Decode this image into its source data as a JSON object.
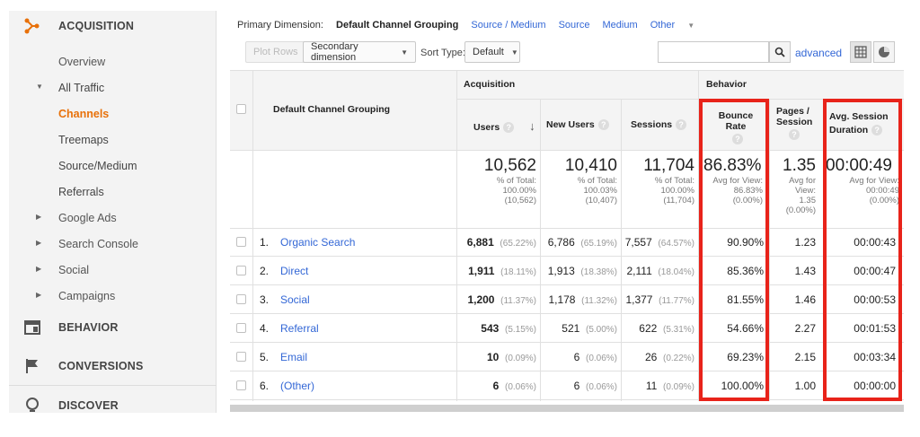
{
  "sidebar": {
    "acquisition_label": "ACQUISITION",
    "items": [
      {
        "label": "Overview"
      },
      {
        "label": "All Traffic"
      },
      {
        "label": "Channels"
      },
      {
        "label": "Treemaps"
      },
      {
        "label": "Source/Medium"
      },
      {
        "label": "Referrals"
      },
      {
        "label": "Google Ads"
      },
      {
        "label": "Search Console"
      },
      {
        "label": "Social"
      },
      {
        "label": "Campaigns"
      }
    ],
    "behavior_label": "BEHAVIOR",
    "conversions_label": "CONVERSIONS",
    "discover_label": "DISCOVER",
    "accent_color": "#e8710a"
  },
  "dimensions": {
    "label": "Primary Dimension:",
    "current": "Default Channel Grouping",
    "options": [
      "Source / Medium",
      "Source",
      "Medium"
    ],
    "other": "Other"
  },
  "toolbar": {
    "plot_rows": "Plot Rows",
    "secondary_dimension": "Secondary dimension",
    "sort_type_label": "Sort Type:",
    "sort_type_value": "Default",
    "search_placeholder": "",
    "advanced": "advanced"
  },
  "table": {
    "group_acquisition": "Acquisition",
    "group_behavior": "Behavior",
    "col_dimension": "Default Channel Grouping",
    "col_users": "Users",
    "col_new_users": "New Users",
    "col_sessions": "Sessions",
    "col_bounce_rate": "Bounce Rate",
    "col_pages_session_1": "Pages /",
    "col_pages_session_2": "Session",
    "col_avg_duration_1": "Avg. Session",
    "col_avg_duration_2": "Duration",
    "totals": {
      "users": "10,562",
      "users_sub1": "% of Total:",
      "users_sub2": "100.00%",
      "users_sub3": "(10,562)",
      "new_users": "10,410",
      "new_users_sub1": "% of Total:",
      "new_users_sub2": "100.03%",
      "new_users_sub3": "(10,407)",
      "sessions": "11,704",
      "sessions_sub1": "% of Total:",
      "sessions_sub2": "100.00%",
      "sessions_sub3": "(11,704)",
      "bounce": "86.83%",
      "bounce_sub1": "Avg for View:",
      "bounce_sub2": "86.83%",
      "bounce_sub3": "(0.00%)",
      "pages": "1.35",
      "pages_sub1": "Avg for",
      "pages_sub2": "View:",
      "pages_sub3": "1.35",
      "pages_sub4": "(0.00%)",
      "duration": "00:00:49",
      "duration_sub1": "Avg for View:",
      "duration_sub2": "00:00:49",
      "duration_sub3": "(0.00%)"
    },
    "rows": [
      {
        "n": "1.",
        "channel": "Organic Search",
        "users": "6,881",
        "users_pct": "(65.22%)",
        "new_users": "6,786",
        "new_users_pct": "(65.19%)",
        "sessions": "7,557",
        "sessions_pct": "(64.57%)",
        "bounce": "90.90%",
        "pages": "1.23",
        "duration": "00:00:43"
      },
      {
        "n": "2.",
        "channel": "Direct",
        "users": "1,911",
        "users_pct": "(18.11%)",
        "new_users": "1,913",
        "new_users_pct": "(18.38%)",
        "sessions": "2,111",
        "sessions_pct": "(18.04%)",
        "bounce": "85.36%",
        "pages": "1.43",
        "duration": "00:00:47"
      },
      {
        "n": "3.",
        "channel": "Social",
        "users": "1,200",
        "users_pct": "(11.37%)",
        "new_users": "1,178",
        "new_users_pct": "(11.32%)",
        "sessions": "1,377",
        "sessions_pct": "(11.77%)",
        "bounce": "81.55%",
        "pages": "1.46",
        "duration": "00:00:53"
      },
      {
        "n": "4.",
        "channel": "Referral",
        "users": "543",
        "users_pct": "(5.15%)",
        "new_users": "521",
        "new_users_pct": "(5.00%)",
        "sessions": "622",
        "sessions_pct": "(5.31%)",
        "bounce": "54.66%",
        "pages": "2.27",
        "duration": "00:01:53"
      },
      {
        "n": "5.",
        "channel": "Email",
        "users": "10",
        "users_pct": "(0.09%)",
        "new_users": "6",
        "new_users_pct": "(0.06%)",
        "sessions": "26",
        "sessions_pct": "(0.22%)",
        "bounce": "69.23%",
        "pages": "2.15",
        "duration": "00:03:34"
      },
      {
        "n": "6.",
        "channel": "(Other)",
        "users": "6",
        "users_pct": "(0.06%)",
        "new_users": "6",
        "new_users_pct": "(0.06%)",
        "sessions": "11",
        "sessions_pct": "(0.09%)",
        "bounce": "100.00%",
        "pages": "1.00",
        "duration": "00:00:00"
      }
    ],
    "highlight_color": "#e8231a"
  }
}
